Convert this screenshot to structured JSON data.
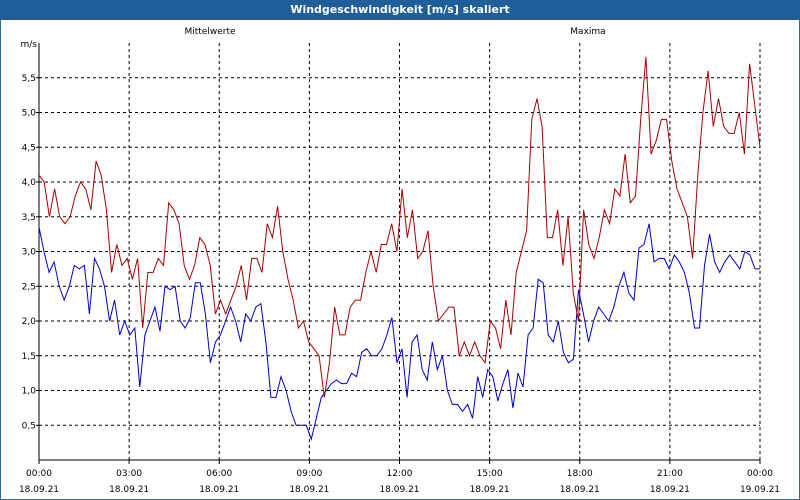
{
  "window": {
    "title": "Windgeschwindigkeit [m/s] skaliert"
  },
  "chart_data": {
    "type": "line",
    "title": "Windgeschwindigkeit [m/s] skaliert",
    "ylabel": "m/s",
    "xlabel": "",
    "ylim": [
      0,
      6.0
    ],
    "xlim": [
      0,
      24
    ],
    "grid": true,
    "legend_placement": "top",
    "x_ticks": [
      {
        "time": "00:00",
        "date": "18.09.21"
      },
      {
        "time": "03:00",
        "date": "18.09.21"
      },
      {
        "time": "06:00",
        "date": "18.09.21"
      },
      {
        "time": "09:00",
        "date": "18.09.21"
      },
      {
        "time": "12:00",
        "date": "18.09.21"
      },
      {
        "time": "15:00",
        "date": "18.09.21"
      },
      {
        "time": "18:00",
        "date": "18.09.21"
      },
      {
        "time": "21:00",
        "date": "18.09.21"
      },
      {
        "time": "00:00",
        "date": "19.09.21"
      }
    ],
    "y_ticks": [
      "0,5",
      "1,0",
      "1,5",
      "2,0",
      "2,5",
      "3,0",
      "3,5",
      "4,0",
      "4,5",
      "5,0",
      "5,5"
    ],
    "series": [
      {
        "name": "Mittelwerte",
        "color": "#0000cc",
        "values": [
          3.35,
          3.0,
          2.7,
          2.85,
          2.5,
          2.3,
          2.5,
          2.8,
          2.75,
          2.8,
          2.1,
          2.9,
          2.75,
          2.5,
          2.0,
          2.3,
          1.8,
          2.0,
          1.8,
          1.9,
          1.05,
          1.8,
          2.0,
          2.2,
          1.85,
          2.5,
          2.45,
          2.5,
          2.0,
          1.9,
          2.05,
          2.55,
          2.55,
          2.1,
          1.4,
          1.7,
          1.8,
          2.0,
          2.2,
          2.0,
          1.7,
          2.1,
          2.0,
          2.2,
          2.25,
          1.7,
          0.9,
          0.9,
          1.2,
          1.0,
          0.7,
          0.5,
          0.5,
          0.5,
          0.3,
          0.6,
          0.9,
          1.0,
          1.1,
          1.15,
          1.1,
          1.1,
          1.25,
          1.2,
          1.55,
          1.6,
          1.5,
          1.5,
          1.6,
          1.8,
          2.05,
          1.4,
          1.6,
          0.9,
          1.7,
          1.8,
          1.3,
          1.15,
          1.7,
          1.3,
          1.5,
          1.0,
          0.8,
          0.8,
          0.7,
          0.8,
          0.6,
          1.2,
          0.9,
          1.3,
          1.2,
          0.85,
          1.1,
          1.3,
          0.75,
          1.25,
          1.05,
          1.8,
          1.9,
          2.6,
          2.55,
          1.8,
          1.7,
          2.0,
          1.55,
          1.4,
          1.45,
          2.45,
          2.1,
          1.7,
          2.0,
          2.2,
          2.1,
          2.0,
          2.2,
          2.5,
          2.7,
          2.4,
          2.3,
          3.05,
          3.1,
          3.4,
          2.85,
          2.9,
          2.9,
          2.75,
          2.95,
          2.85,
          2.7,
          2.4,
          1.9,
          1.9,
          2.8,
          3.25,
          2.85,
          2.7,
          2.85,
          2.95,
          2.85,
          2.75,
          3.0,
          2.95,
          2.75,
          2.75
        ]
      },
      {
        "name": "Maxima",
        "color": "#aa0000",
        "values": [
          4.1,
          4.0,
          3.5,
          3.9,
          3.5,
          3.4,
          3.5,
          3.8,
          4.0,
          3.9,
          3.6,
          4.3,
          4.1,
          3.6,
          2.7,
          3.1,
          2.8,
          2.9,
          2.6,
          2.9,
          1.9,
          2.7,
          2.7,
          2.9,
          2.8,
          3.7,
          3.6,
          3.4,
          2.8,
          2.6,
          2.8,
          3.2,
          3.1,
          2.8,
          2.1,
          2.3,
          2.1,
          2.3,
          2.5,
          2.8,
          2.3,
          2.9,
          2.9,
          2.7,
          3.4,
          3.2,
          3.65,
          3.0,
          2.6,
          2.3,
          1.9,
          2.0,
          1.7,
          1.6,
          1.5,
          0.9,
          1.4,
          2.2,
          1.8,
          1.8,
          2.2,
          2.3,
          2.3,
          2.7,
          3.0,
          2.7,
          3.1,
          3.1,
          3.4,
          3.0,
          3.9,
          3.2,
          3.6,
          2.9,
          3.0,
          3.3,
          2.5,
          2.0,
          2.1,
          2.2,
          2.2,
          1.5,
          1.7,
          1.5,
          1.7,
          1.5,
          1.4,
          2.0,
          1.9,
          1.6,
          2.3,
          1.8,
          2.7,
          3.0,
          3.3,
          4.9,
          5.2,
          4.8,
          3.2,
          3.2,
          3.6,
          2.8,
          3.5,
          2.4,
          2.0,
          3.6,
          3.1,
          2.9,
          3.2,
          3.6,
          3.4,
          3.9,
          3.8,
          4.4,
          3.7,
          3.8,
          4.9,
          5.8,
          4.4,
          4.6,
          4.9,
          4.9,
          4.3,
          3.9,
          3.7,
          3.5,
          2.9,
          4.1,
          5.0,
          5.6,
          4.8,
          5.2,
          4.8,
          4.7,
          4.7,
          5.0,
          4.4,
          5.7,
          5.1,
          4.5
        ]
      }
    ]
  }
}
